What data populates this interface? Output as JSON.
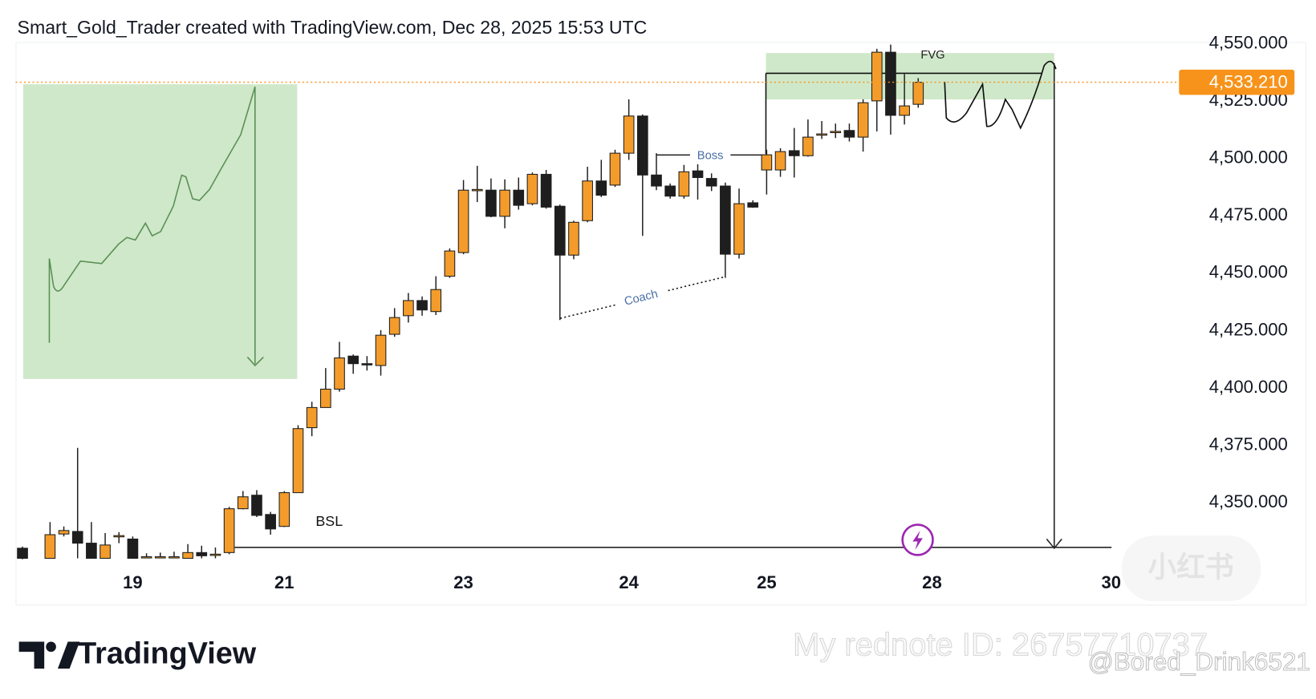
{
  "header": {
    "text": "Smart_Gold_Trader created with TradingView.com, Dec 28, 2025 15:53 UTC"
  },
  "footer": {
    "brand": "TradingView",
    "watermarks": [
      "My rednote ID: 26757710737",
      "@Bored_Drink6521",
      "小红书"
    ]
  },
  "chart_data": {
    "type": "candlestick",
    "x": [
      0,
      2,
      3,
      4,
      5,
      6,
      7,
      8,
      9,
      10,
      11,
      12,
      13,
      14,
      15,
      16,
      17,
      18,
      19,
      20,
      21,
      22,
      23,
      24,
      25,
      26,
      27,
      28,
      29,
      30,
      31,
      32,
      33,
      34,
      35,
      36,
      37,
      38,
      39,
      40,
      41,
      42,
      43,
      44,
      45,
      46,
      47,
      48,
      49,
      50,
      51,
      52,
      53,
      54,
      55,
      56,
      57,
      58,
      59,
      60,
      61,
      62,
      63,
      64,
      65
    ],
    "open": [
      4330.2,
      4325.8,
      4336.4,
      4337.5,
      4332.4,
      4325.8,
      4335.3,
      4334.2,
      4326.1,
      4326.1,
      4326.1,
      4325.8,
      4328.3,
      4327.2,
      4328.3,
      4347.4,
      4353.3,
      4344.9,
      4339.7,
      4354.4,
      4382.7,
      4391.5,
      4399.5,
      4413.9,
      4410.6,
      4409.8,
      4423.4,
      4431.5,
      4438.1,
      4433.3,
      4448.7,
      4459.0,
      4486.2,
      4486.2,
      4474.8,
      4486.2,
      4480.3,
      4493.1,
      4479.2,
      4457.9,
      4472.9,
      4490.2,
      4488.4,
      4502.3,
      4518.5,
      4492.8,
      4488.0,
      4483.6,
      4494.6,
      4491.3,
      4488.0,
      4458.3,
      4480.7,
      4495.0,
      4495.0,
      4503.4,
      4501.2,
      4510.4,
      4511.5,
      4512.2,
      4509.3,
      4525.1,
      4546.3,
      4518.8,
      4523.6
    ],
    "high": [
      4330.9,
      4341.6,
      4339.7,
      4373.9,
      4341.6,
      4336.8,
      4337.2,
      4335.3,
      4328.0,
      4328.3,
      4328.7,
      4332.0,
      4331.3,
      4330.5,
      4348.2,
      4355.1,
      4355.5,
      4346.0,
      4355.1,
      4383.8,
      4394.0,
      4408.7,
      4420.1,
      4414.6,
      4413.9,
      4425.2,
      4434.8,
      4441.4,
      4439.9,
      4448.7,
      4460.8,
      4490.6,
      4496.8,
      4491.3,
      4490.9,
      4491.7,
      4493.9,
      4495.0,
      4479.9,
      4472.9,
      4496.4,
      4499.4,
      4503.8,
      4525.8,
      4519.2,
      4502.3,
      4489.1,
      4497.2,
      4497.5,
      4493.5,
      4489.5,
      4486.9,
      4481.8,
      4503.8,
      4504.5,
      4513.3,
      4517.0,
      4516.3,
      4515.2,
      4515.2,
      4525.8,
      4547.8,
      4549.6,
      4536.8,
      4535.0
    ],
    "low": [
      4325.4,
      4325.8,
      4335.3,
      4325.8,
      4325.8,
      4325.8,
      4332.4,
      4325.8,
      4325.8,
      4325.8,
      4325.8,
      4325.8,
      4325.8,
      4325.8,
      4327.6,
      4347.1,
      4343.8,
      4336.1,
      4339.4,
      4354.4,
      4379.0,
      4391.5,
      4398.4,
      4406.2,
      4407.6,
      4405.4,
      4422.3,
      4428.5,
      4431.5,
      4431.8,
      4448.0,
      4458.3,
      4481.0,
      4474.4,
      4469.6,
      4477.7,
      4479.6,
      4478.1,
      4429.6,
      4456.1,
      4472.2,
      4483.2,
      4487.6,
      4499.4,
      4466.3,
      4486.2,
      4482.5,
      4482.5,
      4482.1,
      4485.8,
      4448.0,
      4456.4,
      4478.5,
      4484.3,
      4492.0,
      4491.7,
      4500.8,
      4508.5,
      4508.9,
      4507.4,
      4503.0,
      4511.8,
      4510.4,
      4514.8,
      4522.1
    ],
    "close": [
      4325.8,
      4336.1,
      4337.9,
      4332.4,
      4325.8,
      4331.6,
      4335.7,
      4325.8,
      4326.5,
      4326.5,
      4326.5,
      4328.3,
      4326.9,
      4327.6,
      4347.4,
      4352.6,
      4344.5,
      4338.6,
      4354.4,
      4382.3,
      4391.5,
      4399.5,
      4413.1,
      4410.6,
      4410.2,
      4423.0,
      4430.7,
      4438.1,
      4434.0,
      4442.9,
      4459.7,
      4486.2,
      4486.5,
      4474.8,
      4486.2,
      4479.6,
      4493.1,
      4478.8,
      4457.9,
      4472.2,
      4490.2,
      4484.0,
      4502.3,
      4518.5,
      4492.8,
      4488.0,
      4483.6,
      4494.2,
      4491.7,
      4488.0,
      4458.3,
      4480.3,
      4478.8,
      4501.6,
      4503.0,
      4501.2,
      4509.3,
      4510.7,
      4511.8,
      4509.3,
      4524.3,
      4546.3,
      4518.8,
      4522.9,
      4533.2
    ],
    "up_color": "#f39c2b",
    "down_color": "#1e1e1e",
    "xlim": [
      -0.5,
      93.1
    ],
    "xticks": [
      {
        "value": 8,
        "label": "19"
      },
      {
        "value": 19,
        "label": "21"
      },
      {
        "value": 32,
        "label": "23"
      },
      {
        "value": 44,
        "label": "24"
      },
      {
        "value": 54,
        "label": "25"
      },
      {
        "value": 66,
        "label": "28"
      },
      {
        "value": 79,
        "label": "30"
      }
    ],
    "ylim": [
      4305.6,
      4550.7
    ],
    "yticks": [
      {
        "value": 4350,
        "label": "4,350.000"
      },
      {
        "value": 4375,
        "label": "4,375.000"
      },
      {
        "value": 4400,
        "label": "4,400.000"
      },
      {
        "value": 4425,
        "label": "4,425.000"
      },
      {
        "value": 4450,
        "label": "4,450.000"
      },
      {
        "value": 4475,
        "label": "4,475.000"
      },
      {
        "value": 4500,
        "label": "4,500.000"
      },
      {
        "value": 4525,
        "label": "4,525.000"
      },
      {
        "value": 4550,
        "label": "4,550.000"
      }
    ],
    "grid": false,
    "current_price": {
      "value": 4533.21,
      "label": "4,533.210",
      "color": "#f7931a"
    },
    "annotations": [
      {
        "text": "FVG"
      },
      {
        "text": "Boss"
      },
      {
        "text": "Coach"
      },
      {
        "text": "BSL"
      }
    ]
  }
}
